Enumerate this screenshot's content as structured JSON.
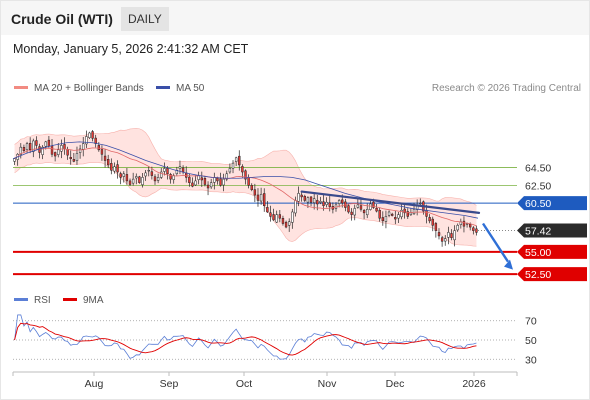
{
  "header": {
    "instrument": "Crude Oil (WTI)",
    "timeframe": "DAILY",
    "datetime": "Monday, January 5, 2026 2:41:32 AM CET"
  },
  "legend": {
    "bb": "MA 20 + Bollinger Bands",
    "ma50": "MA 50",
    "copyright": "Research © 2026 Trading Central",
    "rsi": "RSI",
    "rsi_ma": "9MA"
  },
  "colors": {
    "bb_fill": "#ffe3e0",
    "bb_line": "#f28b82",
    "ma20": "#e06666",
    "ma50": "#3a4fa8",
    "bull": "#ffffff",
    "bear": "#e53935",
    "candle_outline": "#222222",
    "resistance": "#7cb342",
    "pivot": "#1e5bbf",
    "support": "#e00000",
    "last_price": "#2b2b2b",
    "trend": "#3a4a8c",
    "rsi": "#5b7fd6",
    "rsi_ma": "#e00000"
  },
  "chart_data": [
    {
      "type": "candlestick",
      "instrument": "Crude Oil (WTI)",
      "x_tick_labels": [
        "Aug",
        "Sep",
        "Oct",
        "Nov",
        "Dec",
        "2026"
      ],
      "price_levels": [
        {
          "label": "64.50",
          "value": 64.5,
          "kind": "resistance"
        },
        {
          "label": "62.50",
          "value": 62.5,
          "kind": "resistance"
        },
        {
          "label": "60.50",
          "value": 60.5,
          "kind": "pivot"
        },
        {
          "label": "57.42",
          "value": 57.42,
          "kind": "last"
        },
        {
          "label": "55.00",
          "value": 55.0,
          "kind": "support"
        },
        {
          "label": "52.50",
          "value": 52.5,
          "kind": "support"
        }
      ],
      "closes_approx": [
        65.5,
        66.0,
        66.8,
        66.4,
        67.2,
        66.5,
        67.5,
        67.0,
        66.2,
        66.8,
        67.4,
        66.9,
        66.0,
        65.8,
        66.5,
        67.0,
        66.6,
        65.9,
        65.5,
        65.2,
        66.1,
        66.6,
        67.2,
        68.0,
        68.4,
        67.8,
        67.2,
        66.5,
        66.0,
        65.3,
        64.8,
        64.2,
        64.6,
        64.0,
        63.4,
        63.8,
        63.0,
        62.6,
        63.2,
        63.5,
        62.8,
        63.4,
        63.9,
        64.2,
        63.6,
        63.0,
        63.4,
        64.0,
        64.4,
        63.8,
        63.2,
        63.6,
        64.2,
        64.6,
        64.0,
        63.4,
        62.8,
        62.4,
        63.0,
        63.6,
        63.1,
        62.6,
        62.2,
        62.8,
        63.4,
        63.0,
        62.5,
        63.2,
        63.8,
        64.4,
        65.0,
        65.6,
        64.8,
        64.0,
        63.2,
        62.5,
        62.0,
        61.4,
        60.8,
        61.5,
        60.2,
        59.5,
        59.0,
        58.6,
        59.2,
        58.8,
        58.2,
        57.8,
        58.4,
        59.5,
        60.8,
        61.6,
        61.2,
        60.8,
        61.1,
        60.6,
        61.0,
        60.4,
        60.7,
        60.2,
        60.6,
        60.1,
        59.8,
        60.3,
        60.8,
        60.5,
        60.0,
        59.5,
        59.2,
        59.9,
        60.3,
        59.8,
        59.4,
        59.8,
        60.4,
        60.0,
        59.6,
        58.8,
        58.5,
        59.0,
        59.5,
        59.1,
        58.7,
        59.2,
        59.7,
        59.4,
        59.0,
        59.4,
        59.8,
        60.2,
        60.5,
        59.6,
        59.0,
        58.5,
        58.0,
        57.4,
        56.8,
        56.2,
        56.5,
        57.2,
        56.6,
        57.4,
        58.0,
        58.4,
        57.9,
        58.2,
        57.8,
        57.4,
        57.2
      ],
      "ma50_approx": [
        65.5,
        66.1,
        66.6,
        67.0,
        67.3,
        67.4,
        67.3,
        67.0,
        66.5,
        65.9,
        65.3,
        64.8,
        64.3,
        63.9,
        63.6,
        63.4,
        63.3,
        63.3,
        63.4,
        63.5,
        63.5,
        63.4,
        63.1,
        62.6,
        62.1,
        61.6,
        61.2,
        60.8,
        60.5,
        60.2,
        59.9,
        59.7,
        59.5,
        59.3,
        59.1,
        58.8
      ],
      "y_range_price": [
        51.5,
        72
      ],
      "y_range_rsi": [
        22,
        78
      ],
      "rsi_ticks": [
        70,
        50,
        30
      ],
      "rsi_levels_dotted": [
        70,
        50,
        30
      ]
    }
  ]
}
